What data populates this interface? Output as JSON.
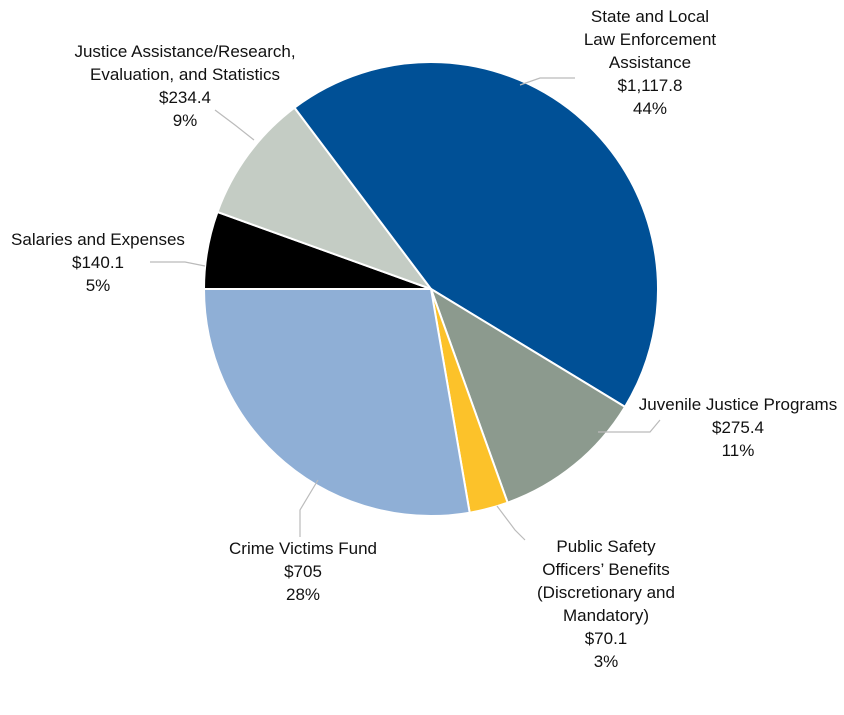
{
  "chart_data": {
    "type": "pie",
    "categories": [
      "Salaries and Expenses",
      "Justice Assistance/Research, Evaluation, and Statistics",
      "State and Local Law Enforcement Assistance",
      "Juvenile Justice Programs",
      "Public Safety Officers’ Benefits (Discretionary and Mandatory)",
      "Crime Victims Fund"
    ],
    "values": [
      140.1,
      234.4,
      1117.8,
      275.4,
      70.1,
      705
    ],
    "value_labels": [
      "$140.1",
      "$234.4",
      "$1,117.8",
      "$275.4",
      "$70.1",
      "$705"
    ],
    "percents": [
      5,
      9,
      44,
      11,
      3,
      28
    ],
    "percent_labels": [
      "5%",
      "9%",
      "44%",
      "11%",
      "3%",
      "28%"
    ],
    "colors": [
      "#000000",
      "#c4ccc4",
      "#005096",
      "#8c9a8e",
      "#fcc22a",
      "#8fafd6"
    ]
  }
}
